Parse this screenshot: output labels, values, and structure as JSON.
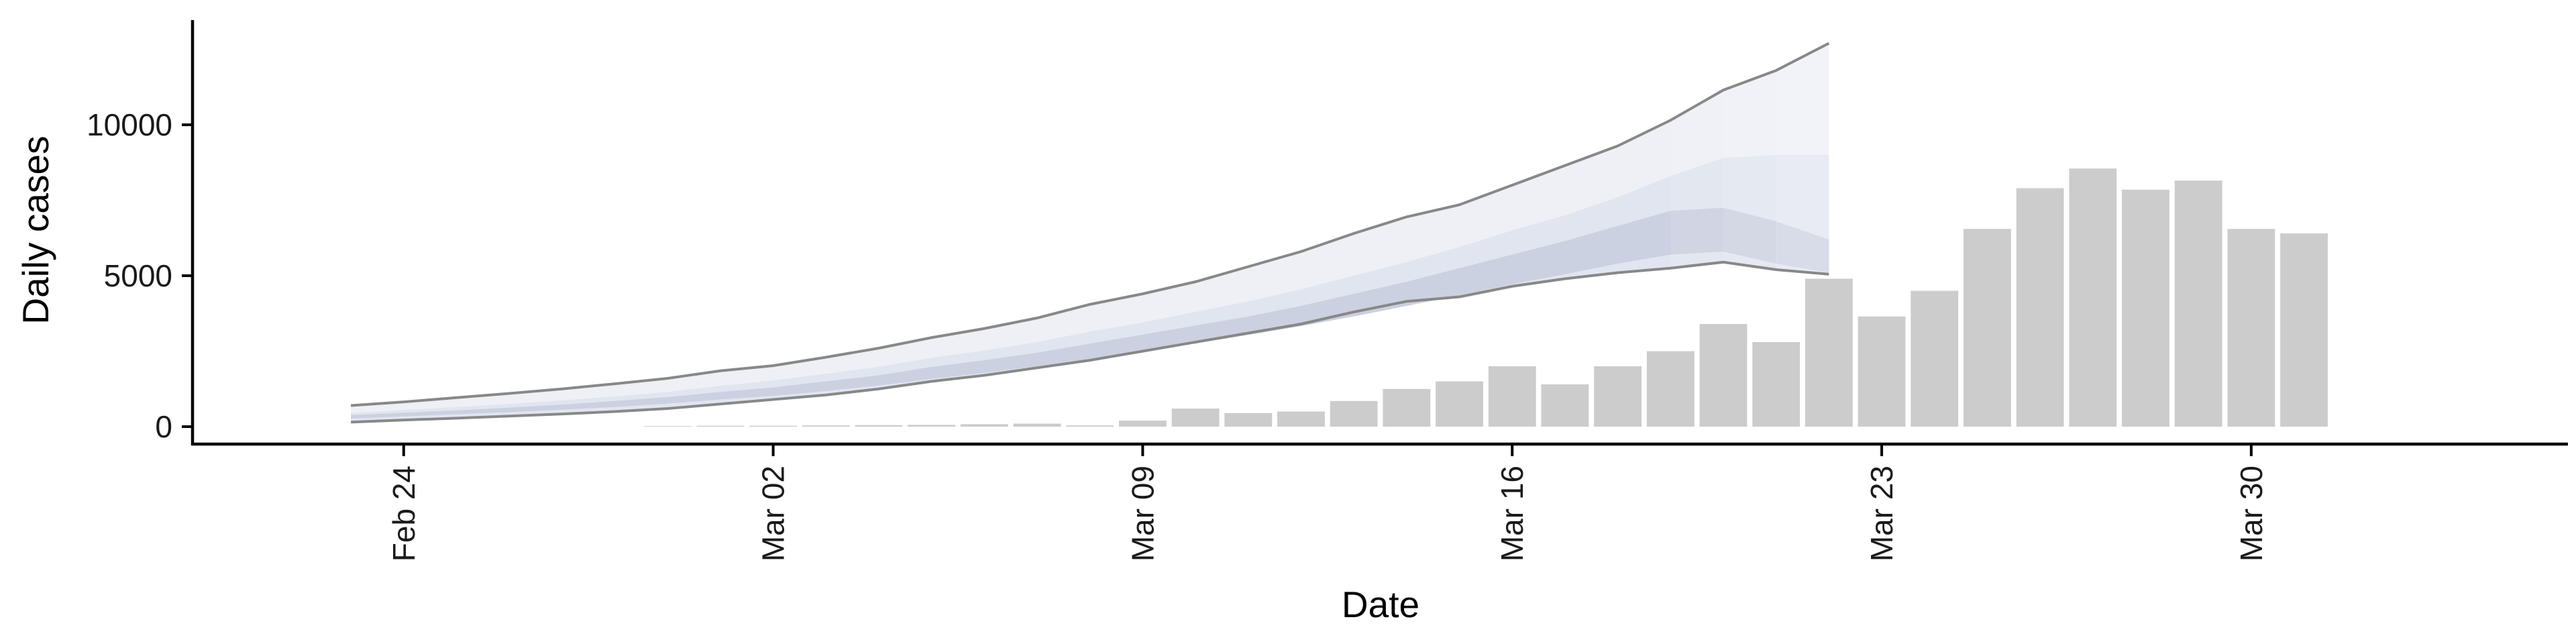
{
  "chart_data": {
    "type": "bar",
    "xlabel": "Date",
    "ylabel": "Daily cases",
    "x_tick_labels": [
      "Feb 24",
      "Mar 02",
      "Mar 09",
      "Mar 16",
      "Mar 23",
      "Mar 30"
    ],
    "x_tick_dates": [
      "2020-02-24",
      "2020-03-02",
      "2020-03-09",
      "2020-03-16",
      "2020-03-23",
      "2020-03-30"
    ],
    "y_tick_labels": [
      "0",
      "5000",
      "10000"
    ],
    "y_tick_values": [
      0,
      5000,
      10000
    ],
    "xlim": [
      "2020-02-20",
      "2020-04-05"
    ],
    "ylim": [
      -600,
      13500
    ],
    "grid": false,
    "legend": "none",
    "colors": {
      "bars": "#cccccc",
      "band_outer": "#eef0f6",
      "band_mid": "#e1e5ef",
      "band_inner": "#ccd1e1",
      "bound_lines": "#888888"
    },
    "bars": {
      "dates": [
        "2020-02-29",
        "2020-03-01",
        "2020-03-02",
        "2020-03-03",
        "2020-03-04",
        "2020-03-05",
        "2020-03-06",
        "2020-03-07",
        "2020-03-08",
        "2020-03-09",
        "2020-03-10",
        "2020-03-11",
        "2020-03-12",
        "2020-03-13",
        "2020-03-14",
        "2020-03-15",
        "2020-03-16",
        "2020-03-17",
        "2020-03-18",
        "2020-03-19",
        "2020-03-20",
        "2020-03-21",
        "2020-03-22",
        "2020-03-23",
        "2020-03-24",
        "2020-03-25",
        "2020-03-26",
        "2020-03-27",
        "2020-03-28",
        "2020-03-29",
        "2020-03-30",
        "2020-03-31"
      ],
      "values": [
        20,
        30,
        30,
        40,
        50,
        60,
        80,
        100,
        40,
        200,
        600,
        450,
        500,
        850,
        1250,
        1500,
        2000,
        1400,
        2000,
        2500,
        3400,
        2800,
        4900,
        3650,
        4500,
        6550,
        7900,
        8550,
        7850,
        8150,
        6550,
        6400
      ]
    },
    "forecast": {
      "dates": [
        "2020-02-23",
        "2020-02-24",
        "2020-02-25",
        "2020-02-26",
        "2020-02-27",
        "2020-02-28",
        "2020-02-29",
        "2020-03-01",
        "2020-03-02",
        "2020-03-03",
        "2020-03-04",
        "2020-03-05",
        "2020-03-06",
        "2020-03-07",
        "2020-03-08",
        "2020-03-09",
        "2020-03-10",
        "2020-03-11",
        "2020-03-12",
        "2020-03-13",
        "2020-03-14",
        "2020-03-15",
        "2020-03-16",
        "2020-03-17",
        "2020-03-18",
        "2020-03-19",
        "2020-03-20",
        "2020-03-21",
        "2020-03-22"
      ],
      "upper_90": [
        700,
        820,
        960,
        1100,
        1250,
        1420,
        1600,
        1850,
        2020,
        2300,
        2600,
        2950,
        3250,
        3600,
        4050,
        4400,
        4800,
        5300,
        5800,
        6400,
        6950,
        7350,
        8000,
        8650,
        9300,
        10150,
        11150,
        11800,
        12700
      ],
      "upper_50": [
        450,
        550,
        650,
        750,
        870,
        1000,
        1150,
        1350,
        1530,
        1750,
        1980,
        2280,
        2520,
        2800,
        3150,
        3450,
        3800,
        4150,
        4550,
        5000,
        5450,
        5950,
        6500,
        7000,
        7600,
        8300,
        8900,
        9000,
        9000
      ],
      "upper_30": [
        380,
        460,
        540,
        630,
        730,
        850,
        980,
        1150,
        1300,
        1500,
        1700,
        1980,
        2200,
        2450,
        2750,
        3050,
        3350,
        3650,
        4000,
        4400,
        4800,
        5250,
        5700,
        6150,
        6650,
        7150,
        7250,
        6800,
        6200
      ],
      "lower_30": [
        270,
        340,
        410,
        480,
        560,
        650,
        760,
        900,
        1020,
        1180,
        1360,
        1580,
        1780,
        2000,
        2250,
        2500,
        2760,
        3040,
        3330,
        3650,
        4000,
        4350,
        4720,
        5050,
        5400,
        5700,
        5800,
        5400,
        5100
      ],
      "lower_90": [
        150,
        220,
        280,
        350,
        420,
        500,
        600,
        750,
        900,
        1050,
        1250,
        1500,
        1700,
        1950,
        2200,
        2500,
        2800,
        3100,
        3400,
        3800,
        4150,
        4300,
        4650,
        4900,
        5100,
        5250,
        5450,
        5200,
        5050
      ]
    }
  }
}
